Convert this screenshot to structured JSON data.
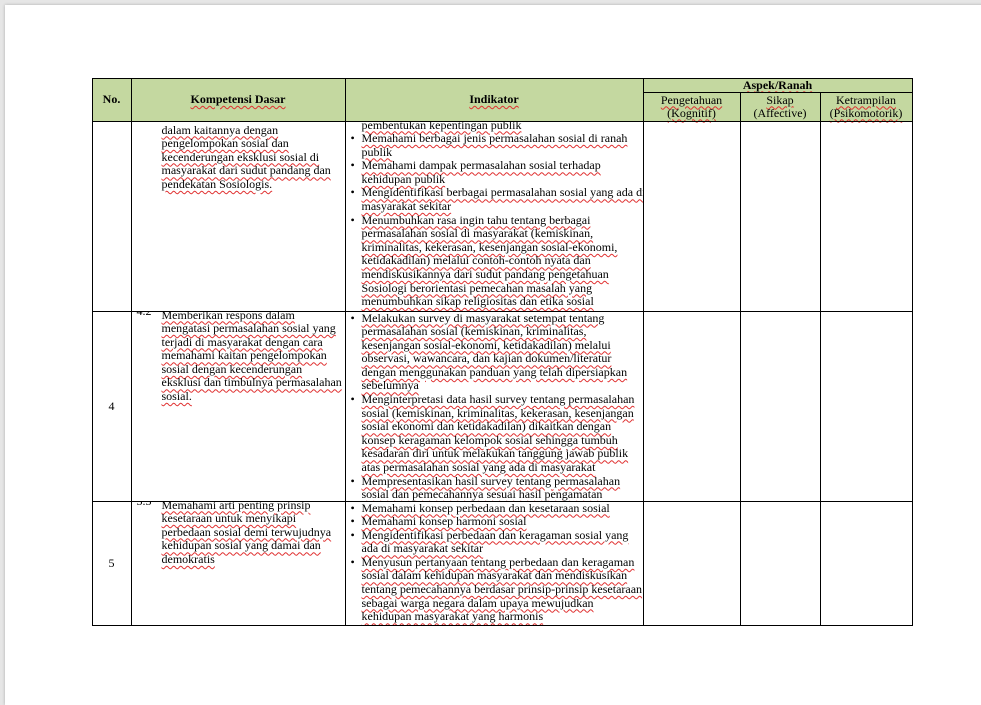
{
  "table": {
    "headers": {
      "no": "No.",
      "kompetensi": "Kompetensi Dasar",
      "indikator": "Indikator",
      "aspek": "Aspek/Ranah",
      "pengetahuan": [
        "Pengetahuan",
        "(Kognitif)"
      ],
      "sikap": [
        "Sikap",
        "(Affective)"
      ],
      "ketrampilan": [
        "Ketrampilan",
        "(Psikomotorik)"
      ]
    },
    "rows": [
      {
        "no": "",
        "kd_code": "",
        "kd_lines": [
          "dalam kaitannya dengan",
          "pengelompokan sosial dan",
          "kecenderungan eksklusi sosial di",
          "masyarakat dari sudut pandang dan",
          "pendekatan Sosiologis."
        ],
        "indikator": [
          {
            "bullet": false,
            "lines": [
              "pembentukan kepentingan publik"
            ]
          },
          {
            "bullet": true,
            "lines": [
              "Memahami berbagai jenis permasalahan sosial di ranah",
              "publik"
            ]
          },
          {
            "bullet": true,
            "lines": [
              "Memahami dampak permasalahan sosial terhadap",
              "kehidupan publik"
            ]
          },
          {
            "bullet": true,
            "lines": [
              "Mengidentifikasi berbagai permasalahan sosial yang ada di",
              "masyarakat sekitar"
            ]
          },
          {
            "bullet": true,
            "lines": [
              "Menumbuhkan rasa ingin tahu tentang berbagai",
              "permasalahan sosial di masyarakat (kemiskinan,",
              "kriminalitas, kekerasan, kesenjangan sosial-ekonomi,",
              "ketidakadilan) melalui contoh-contoh nyata dan",
              "mendiskusikannya dari sudut pandang pengetahuan",
              "Sosiologi  berorientasi pemecahan masalah yang",
              "menumbuhkan sikap religiositas dan etika sosial"
            ]
          }
        ]
      },
      {
        "no": "4",
        "kd_code": "4.2",
        "kd_lines": [
          "Memberikan respons dalam",
          "mengatasi permasalahan sosial yang",
          "terjadi di masyarakat dengan cara",
          "memahami kaitan pengelompokan",
          "sosial dengan kecenderungan",
          "eksklusi dan timbulnya permasalahan",
          "sosial."
        ],
        "indikator": [
          {
            "bullet": true,
            "lines": [
              "Melakukan survey di masyarakat setempat  tentang",
              "permasalahan sosial (kemiskinan, kriminalitas,",
              "kesenjangan sosial-ekonomi, ketidakadilan) melalui",
              "observasi, wawancara, dan kajian dokumen/literatur",
              "dengan menggunakan panduan yang telah dipersiapkan",
              "sebelumnya"
            ]
          },
          {
            "bullet": true,
            "lines": [
              "Menginterpretasi data hasil survey tentang permasalahan",
              "sosial (kemiskinan, kriminalitas, kekerasan, kesenjangan",
              "sosial ekonomi dan ketidakadilan) dikaitkan dengan",
              "konsep keragaman kelompok sosial sehingga tumbuh",
              "kesadaran diri untuk melakukan tanggung jawab publik",
              "atas permasalahan sosial yang ada di masyarakat"
            ]
          },
          {
            "bullet": true,
            "lines": [
              "Mempresentasikan hasil  survey tentang permasalahan",
              "sosial dan pemecahannya sesuai hasil pengamatan"
            ]
          }
        ]
      },
      {
        "no": "5",
        "kd_code": "3.3",
        "kd_lines": [
          "Memahami arti penting prinsip",
          "kesetaraan untuk menyikapi",
          "perbedaan sosial demi terwujudnya",
          "kehidupan sosial yang damai dan",
          "demokratis"
        ],
        "indikator": [
          {
            "bullet": true,
            "lines": [
              "Memahami konsep perbedaan dan kesetaraan sosial"
            ]
          },
          {
            "bullet": true,
            "lines": [
              "Memahami konsep harmoni sosial"
            ]
          },
          {
            "bullet": true,
            "lines": [
              "Mengidentifikasi perbedaan dan keragaman sosial yang",
              "ada di masyarakat sekitar"
            ]
          },
          {
            "bullet": true,
            "lines": [
              "Menyusun pertanyaan tentang perbedaan dan keragaman",
              "sosial dalam kehidupan masyarakat dan mendiskusikan",
              "tentang pemecahannya  berdasar prinsip-prinsip kesetaraan",
              "sebagai warga negara dalam upaya mewujudkan",
              "kehidupan masyarakat yang harmonis"
            ]
          }
        ]
      }
    ],
    "header_color": "#c4d8a0"
  }
}
